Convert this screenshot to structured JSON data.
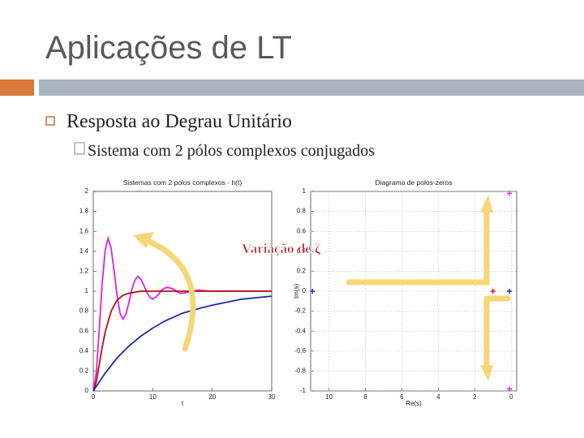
{
  "slide": {
    "title": "Aplicações de LT",
    "bullet": "Resposta ao Degrau Unitário",
    "sub_bullet": "Sistema com 2 pólos complexos conjugados",
    "annotation": "Variação de ζ"
  },
  "chart_data": [
    {
      "type": "line",
      "title": "Sistemas com 2 polos complexos - h(t)",
      "xlabel": "t",
      "xlim": [
        0,
        30
      ],
      "xticks": [
        0,
        10,
        20,
        30
      ],
      "ylim": [
        0,
        2
      ],
      "yticks": [
        0,
        0.2,
        0.4,
        0.6,
        0.8,
        1,
        1.2,
        1.4,
        1.6,
        1.8,
        2
      ],
      "grid": false,
      "series": [
        {
          "color": "#e020e0",
          "x": [
            0,
            0.5,
            1,
            1.5,
            2,
            2.5,
            3,
            3.5,
            4,
            4.5,
            5,
            5.5,
            6,
            6.5,
            7,
            7.5,
            8,
            8.5,
            9,
            9.5,
            10,
            10.5,
            11,
            11.5,
            12,
            12.5,
            13,
            13.5,
            14,
            14.5,
            15,
            16,
            17.5,
            20,
            25,
            30
          ],
          "values": [
            0,
            0.18,
            0.61,
            1.08,
            1.41,
            1.53,
            1.43,
            1.2,
            0.96,
            0.78,
            0.72,
            0.77,
            0.89,
            1.02,
            1.11,
            1.15,
            1.12,
            1.06,
            0.99,
            0.94,
            0.92,
            0.94,
            0.97,
            1.01,
            1.03,
            1.04,
            1.03,
            1.02,
            1.0,
            0.98,
            0.98,
            0.99,
            1.01,
            1.0,
            1.0,
            1.0
          ]
        },
        {
          "color": "#b01010",
          "x": [
            0,
            0.5,
            1,
            1.5,
            2,
            3,
            4,
            5,
            6,
            7,
            8,
            10,
            15,
            20,
            25,
            30
          ],
          "values": [
            0,
            0.09,
            0.26,
            0.44,
            0.59,
            0.8,
            0.91,
            0.96,
            0.98,
            0.99,
            1.0,
            1.0,
            1.0,
            1.0,
            1.0,
            1.0
          ]
        },
        {
          "color": "#1a2ea8",
          "x": [
            0,
            2,
            4,
            6,
            8,
            10,
            12,
            15,
            18,
            20,
            25,
            30
          ],
          "values": [
            0,
            0.18,
            0.33,
            0.45,
            0.55,
            0.63,
            0.7,
            0.78,
            0.83,
            0.86,
            0.92,
            0.95
          ]
        }
      ]
    },
    {
      "type": "scatter",
      "title": "Diagrama de polos-zeros",
      "xlabel": "Re(s)",
      "ylabel": "Im(s)",
      "xlim": [
        -11,
        0.3
      ],
      "xticks": [
        {
          "value": -10,
          "label": "10"
        },
        {
          "value": -8,
          "label": "8"
        },
        {
          "value": -6,
          "label": "6"
        },
        {
          "value": -4,
          "label": "4"
        },
        {
          "value": -2,
          "label": "2"
        },
        0
      ],
      "ylim": [
        -1,
        1
      ],
      "yticks": [
        -1,
        -0.8,
        -0.6,
        -0.4,
        -0.2,
        0,
        0.2,
        0.4,
        0.6,
        0.8,
        1
      ],
      "grid": true,
      "series": [
        {
          "color": "#e020e0",
          "x": [
            -0.1,
            -0.1
          ],
          "values": [
            0.98,
            -0.98
          ]
        },
        {
          "color": "#d01010",
          "x": [
            -1
          ],
          "values": [
            0
          ]
        },
        {
          "color": "#1a2ea8",
          "x": [
            -10.9,
            -0.1
          ],
          "values": [
            0,
            0
          ]
        }
      ]
    }
  ]
}
